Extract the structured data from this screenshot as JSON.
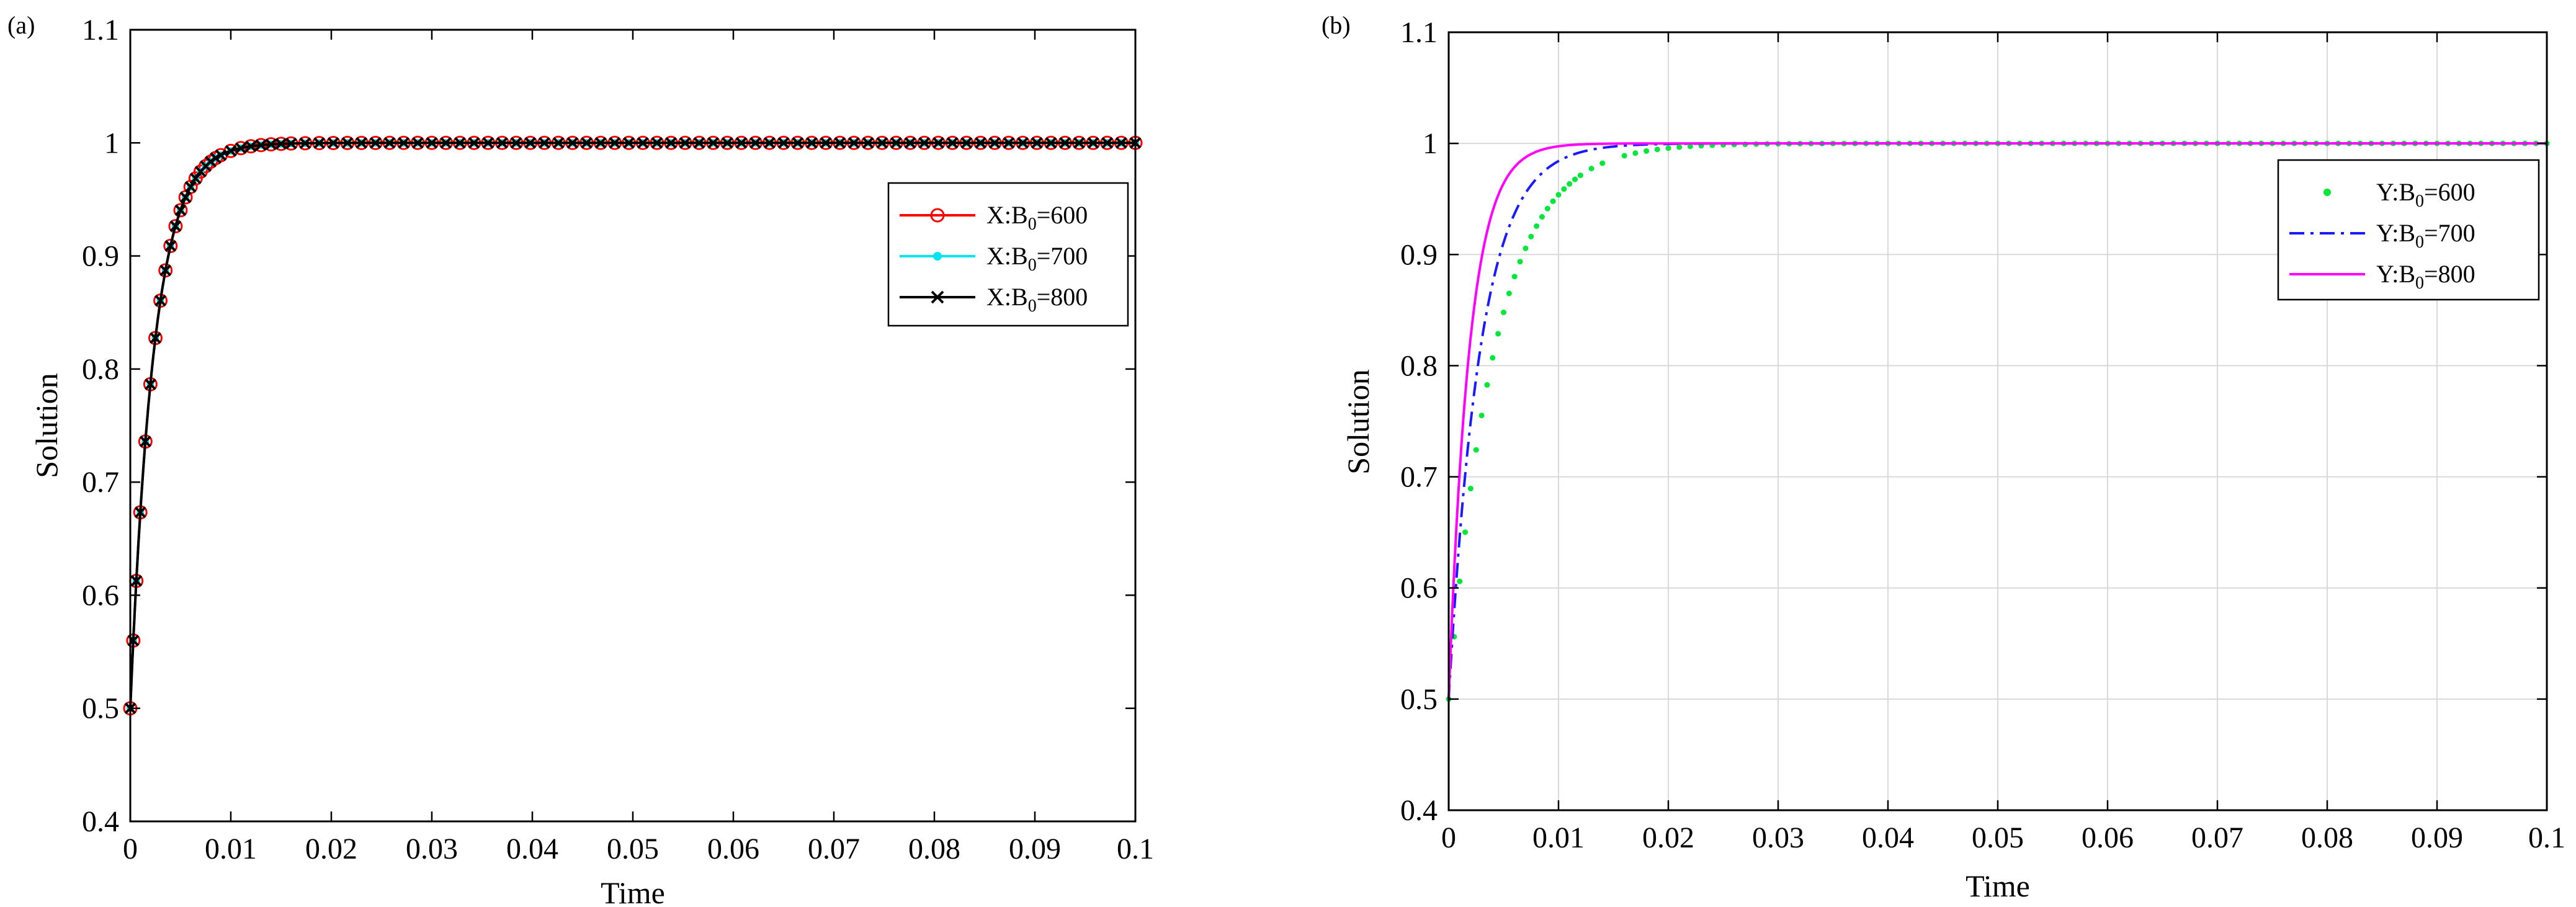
{
  "chart_data": [
    {
      "panel": "(a)",
      "type": "line",
      "title": "",
      "xlabel": "Time",
      "ylabel": "Solution",
      "xlim": [
        0,
        0.1
      ],
      "ylim": [
        0.4,
        1.1
      ],
      "xticks": [
        0,
        0.01,
        0.02,
        0.03,
        0.04,
        0.05,
        0.06,
        0.07,
        0.08,
        0.09,
        0.1
      ],
      "xtick_labels": [
        "0",
        "0.01",
        "0.02",
        "0.03",
        "0.04",
        "0.05",
        "0.06",
        "0.07",
        "0.08",
        "0.09",
        "0.1"
      ],
      "yticks": [
        0.4,
        0.5,
        0.6,
        0.7,
        0.8,
        0.9,
        1,
        1.1
      ],
      "ytick_labels": [
        "0.4",
        "0.5",
        "0.6",
        "0.7",
        "0.8",
        "0.9",
        "1",
        "1.1"
      ],
      "grid": false,
      "legend_position": "right",
      "series": [
        {
          "name": "X:B0=600",
          "legend_prefix": "X:B",
          "legend_sub": "0",
          "legend_suffix": "=600",
          "color": "#ff0000",
          "line": "solid",
          "marker": "circle",
          "tau": 0.00235
        },
        {
          "name": "X:B0=700",
          "legend_prefix": "X:B",
          "legend_sub": "0",
          "legend_suffix": "=700",
          "color": "#00e5ee",
          "line": "solid",
          "marker": "dot",
          "tau": 0.00235
        },
        {
          "name": "X:B0=800",
          "legend_prefix": "X:B",
          "legend_sub": "0",
          "legend_suffix": "=800",
          "color": "#000000",
          "line": "solid",
          "marker": "x",
          "tau": 0.00235
        }
      ],
      "curve_model": "y = 1 - 0.5*exp(-t/tau)",
      "sample_points_t": [
        0,
        0.0003,
        0.0006,
        0.001,
        0.0015,
        0.002,
        0.0025,
        0.003,
        0.0035,
        0.004,
        0.0045,
        0.005,
        0.0055,
        0.006,
        0.0065,
        0.007,
        0.0075,
        0.008,
        0.0085,
        0.009,
        0.01,
        0.011,
        0.012,
        0.013,
        0.014,
        0.015
      ]
    },
    {
      "panel": "(b)",
      "type": "line",
      "title": "",
      "xlabel": "Time",
      "ylabel": "Solution",
      "xlim": [
        0,
        0.1
      ],
      "ylim": [
        0.4,
        1.1
      ],
      "xticks": [
        0,
        0.01,
        0.02,
        0.03,
        0.04,
        0.05,
        0.06,
        0.07,
        0.08,
        0.09,
        0.1
      ],
      "xtick_labels": [
        "0",
        "0.01",
        "0.02",
        "0.03",
        "0.04",
        "0.05",
        "0.06",
        "0.07",
        "0.08",
        "0.09",
        "0.1"
      ],
      "yticks": [
        0.4,
        0.5,
        0.6,
        0.7,
        0.8,
        0.9,
        1,
        1.1
      ],
      "ytick_labels": [
        "0.4",
        "0.5",
        "0.6",
        "0.7",
        "0.8",
        "0.9",
        "1",
        "1.1"
      ],
      "grid": true,
      "legend_position": "top-right",
      "series": [
        {
          "name": "Y:B0=600",
          "legend_prefix": "Y:B",
          "legend_sub": "0",
          "legend_suffix": "=600",
          "color": "#00e639",
          "line": "dotted",
          "marker": "dot",
          "tau": 0.0042
        },
        {
          "name": "Y:B0=700",
          "legend_prefix": "Y:B",
          "legend_sub": "0",
          "legend_suffix": "=700",
          "color": "#1a1aff",
          "line": "dashdot",
          "marker": "none",
          "tau": 0.0029
        },
        {
          "name": "Y:B0=800",
          "legend_prefix": "Y:B",
          "legend_sub": "0",
          "legend_suffix": "=800",
          "color": "#ff00ff",
          "line": "solid",
          "marker": "none",
          "tau": 0.0019
        }
      ],
      "curve_model": "y = 1 - 0.5*exp(-t/tau)",
      "sample_points_t": [
        0,
        0.0005,
        0.001,
        0.0015,
        0.002,
        0.0025,
        0.003,
        0.0035,
        0.004,
        0.0045,
        0.005,
        0.0055,
        0.006,
        0.0065,
        0.007,
        0.0075,
        0.008,
        0.0085,
        0.009,
        0.0095,
        0.01,
        0.0105,
        0.011,
        0.0115,
        0.012,
        0.013,
        0.014
      ]
    }
  ]
}
